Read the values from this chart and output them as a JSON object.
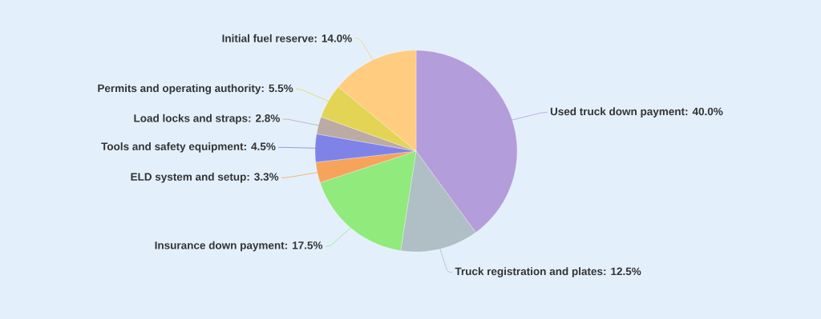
{
  "chart_data": {
    "type": "pie",
    "categories": [
      "Used truck down payment: 40.0%",
      "Truck registration and plates: 12.5%",
      "Insurance down payment: 17.5%",
      "ELD system and setup: 3.3%",
      "Tools and safety equipment: 4.5%",
      "Load locks and straps: 2.8%",
      "Permits and operating authority: 5.5%",
      "Initial fuel reserve: 14.0%"
    ],
    "values": [
      40.0,
      12.5,
      17.5,
      3.3,
      4.5,
      2.8,
      5.5,
      14.0
    ],
    "colors": [
      "#b39ddb",
      "#b0bec5",
      "#90ea7c",
      "#f6a35c",
      "#7f83e8",
      "#bcaaa4",
      "#e4d455",
      "#ffcc80"
    ]
  }
}
